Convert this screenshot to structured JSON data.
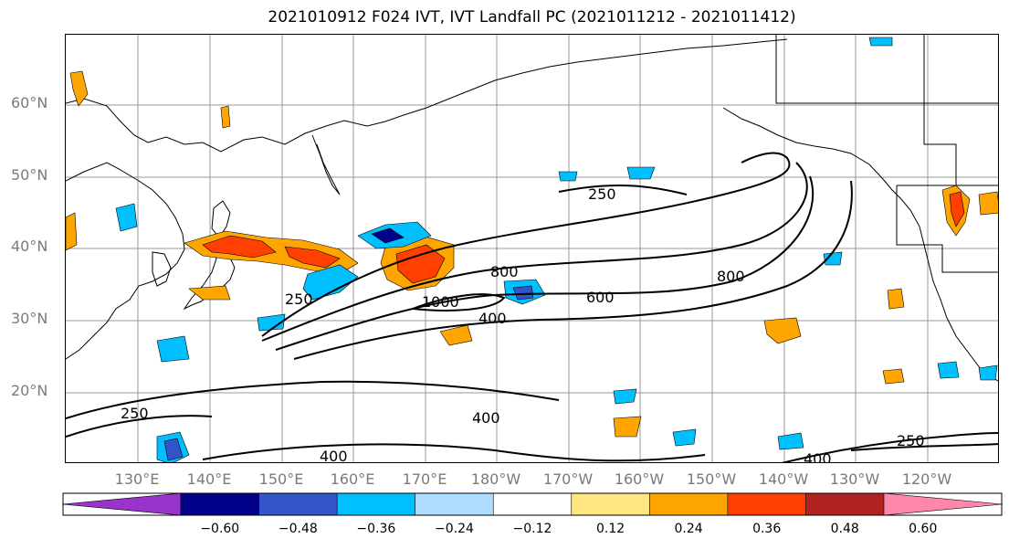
{
  "title": "2021010912 F024 IVT, IVT Landfall PC (2021011212 - 2021011412)",
  "lat_labels": [
    "60°N",
    "50°N",
    "40°N",
    "30°N",
    "20°N"
  ],
  "lon_labels": [
    "130°E",
    "140°E",
    "150°E",
    "160°E",
    "170°E",
    "180°W",
    "170°W",
    "160°W",
    "150°W",
    "140°W",
    "130°W",
    "120°W"
  ],
  "contour_labels": [
    "250",
    "800",
    "800",
    "1000",
    "600",
    "400",
    "250",
    "250",
    "400",
    "400",
    "250",
    "400"
  ],
  "colorbar": {
    "ticks": [
      "−0.60",
      "−0.48",
      "−0.36",
      "−0.24",
      "−0.12",
      "0.12",
      "0.24",
      "0.36",
      "0.48",
      "0.60"
    ],
    "colors": [
      "#9933cc",
      "#000088",
      "#3355cc",
      "#00bfff",
      "#aeddff",
      "#ffffff",
      "#ffe680",
      "#ffa500",
      "#ff4000",
      "#b22222",
      "#ff88aa"
    ]
  },
  "colors": {
    "contour": "#000000",
    "gridline": "#999999",
    "coastline": "#000000"
  }
}
